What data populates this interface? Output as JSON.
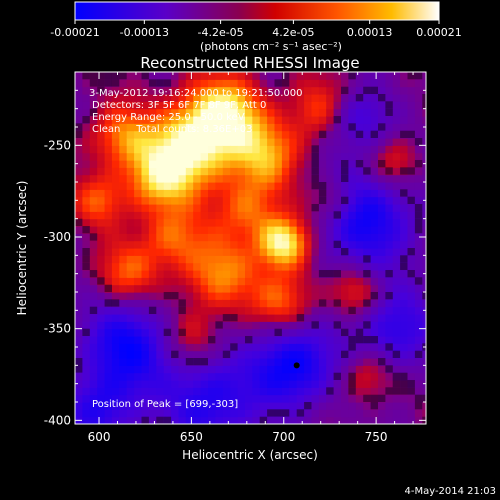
{
  "colorbar": {
    "tick_labels": [
      "-0.00021",
      "-0.00013",
      "-4.2e-05",
      "4.2e-05",
      "0.00013",
      "0.00021"
    ],
    "tick_values": [
      -0.00021,
      -0.00013,
      -4.2e-05,
      4.2e-05,
      0.00013,
      0.00021
    ],
    "range": [
      -0.00021,
      0.00021
    ],
    "unit_label": "(photons cm⁻² s⁻¹ asec⁻²)",
    "colors": [
      "#0000ff",
      "#5a00c8",
      "#b40000",
      "#ff2200",
      "#ff9900",
      "#ffff66",
      "#ffffff"
    ]
  },
  "chart_data": {
    "type": "heatmap",
    "title": "Reconstructed RHESSI Image",
    "xlabel": "Heliocentric X (arcsec)",
    "ylabel": "Heliocentric Y (arcsec)",
    "xlim": [
      587,
      777
    ],
    "ylim": [
      -402,
      -210
    ],
    "xticks": [
      600,
      650,
      700,
      750
    ],
    "yticks": [
      -250,
      -300,
      -350,
      -400
    ],
    "annotations": [
      "3-May-2012 19:16:24.000 to 19:21:50.000",
      "Detectors: 3F 5F 6F 7F 8F 9F, Att 0",
      "Energy Range: 25.0 - 50.0 keV",
      "Clean     Total counts: 8.36E+03"
    ],
    "peak_label": "Position of Peak = [699,-303]",
    "peak": [
      699,
      -303
    ]
  },
  "footer_timestamp": "4-May-2014 21:03"
}
